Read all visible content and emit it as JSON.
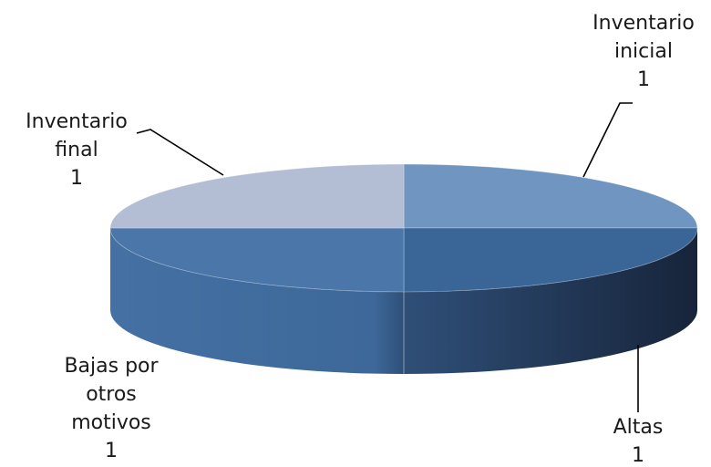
{
  "chart_data": {
    "type": "pie",
    "variant": "3d",
    "title": "",
    "series": [
      {
        "categories": [
          "Inventario inicial",
          "Altas",
          "Bajas por otros motivos",
          "Inventario final"
        ],
        "values": [
          1,
          1,
          1,
          1
        ]
      }
    ],
    "slices": [
      {
        "label_lines": [
          "Inventario",
          "inicial"
        ],
        "value": "1",
        "color": "#6f95c0",
        "side_color": "#4f78a8"
      },
      {
        "label_lines": [
          "Altas"
        ],
        "value": "1",
        "color": "#3a6597",
        "side_color": "#1e2e48"
      },
      {
        "label_lines": [
          "Bajas por",
          "otros",
          "motivos"
        ],
        "value": "1",
        "color": "#4a76aa",
        "side_color": "#40699c"
      },
      {
        "label_lines": [
          "Inventario",
          "final"
        ],
        "value": "1",
        "color": "#b3bdd3",
        "side_color": "#9aa7c2"
      }
    ],
    "legend": "none",
    "data_labels": "outside with leader lines"
  }
}
